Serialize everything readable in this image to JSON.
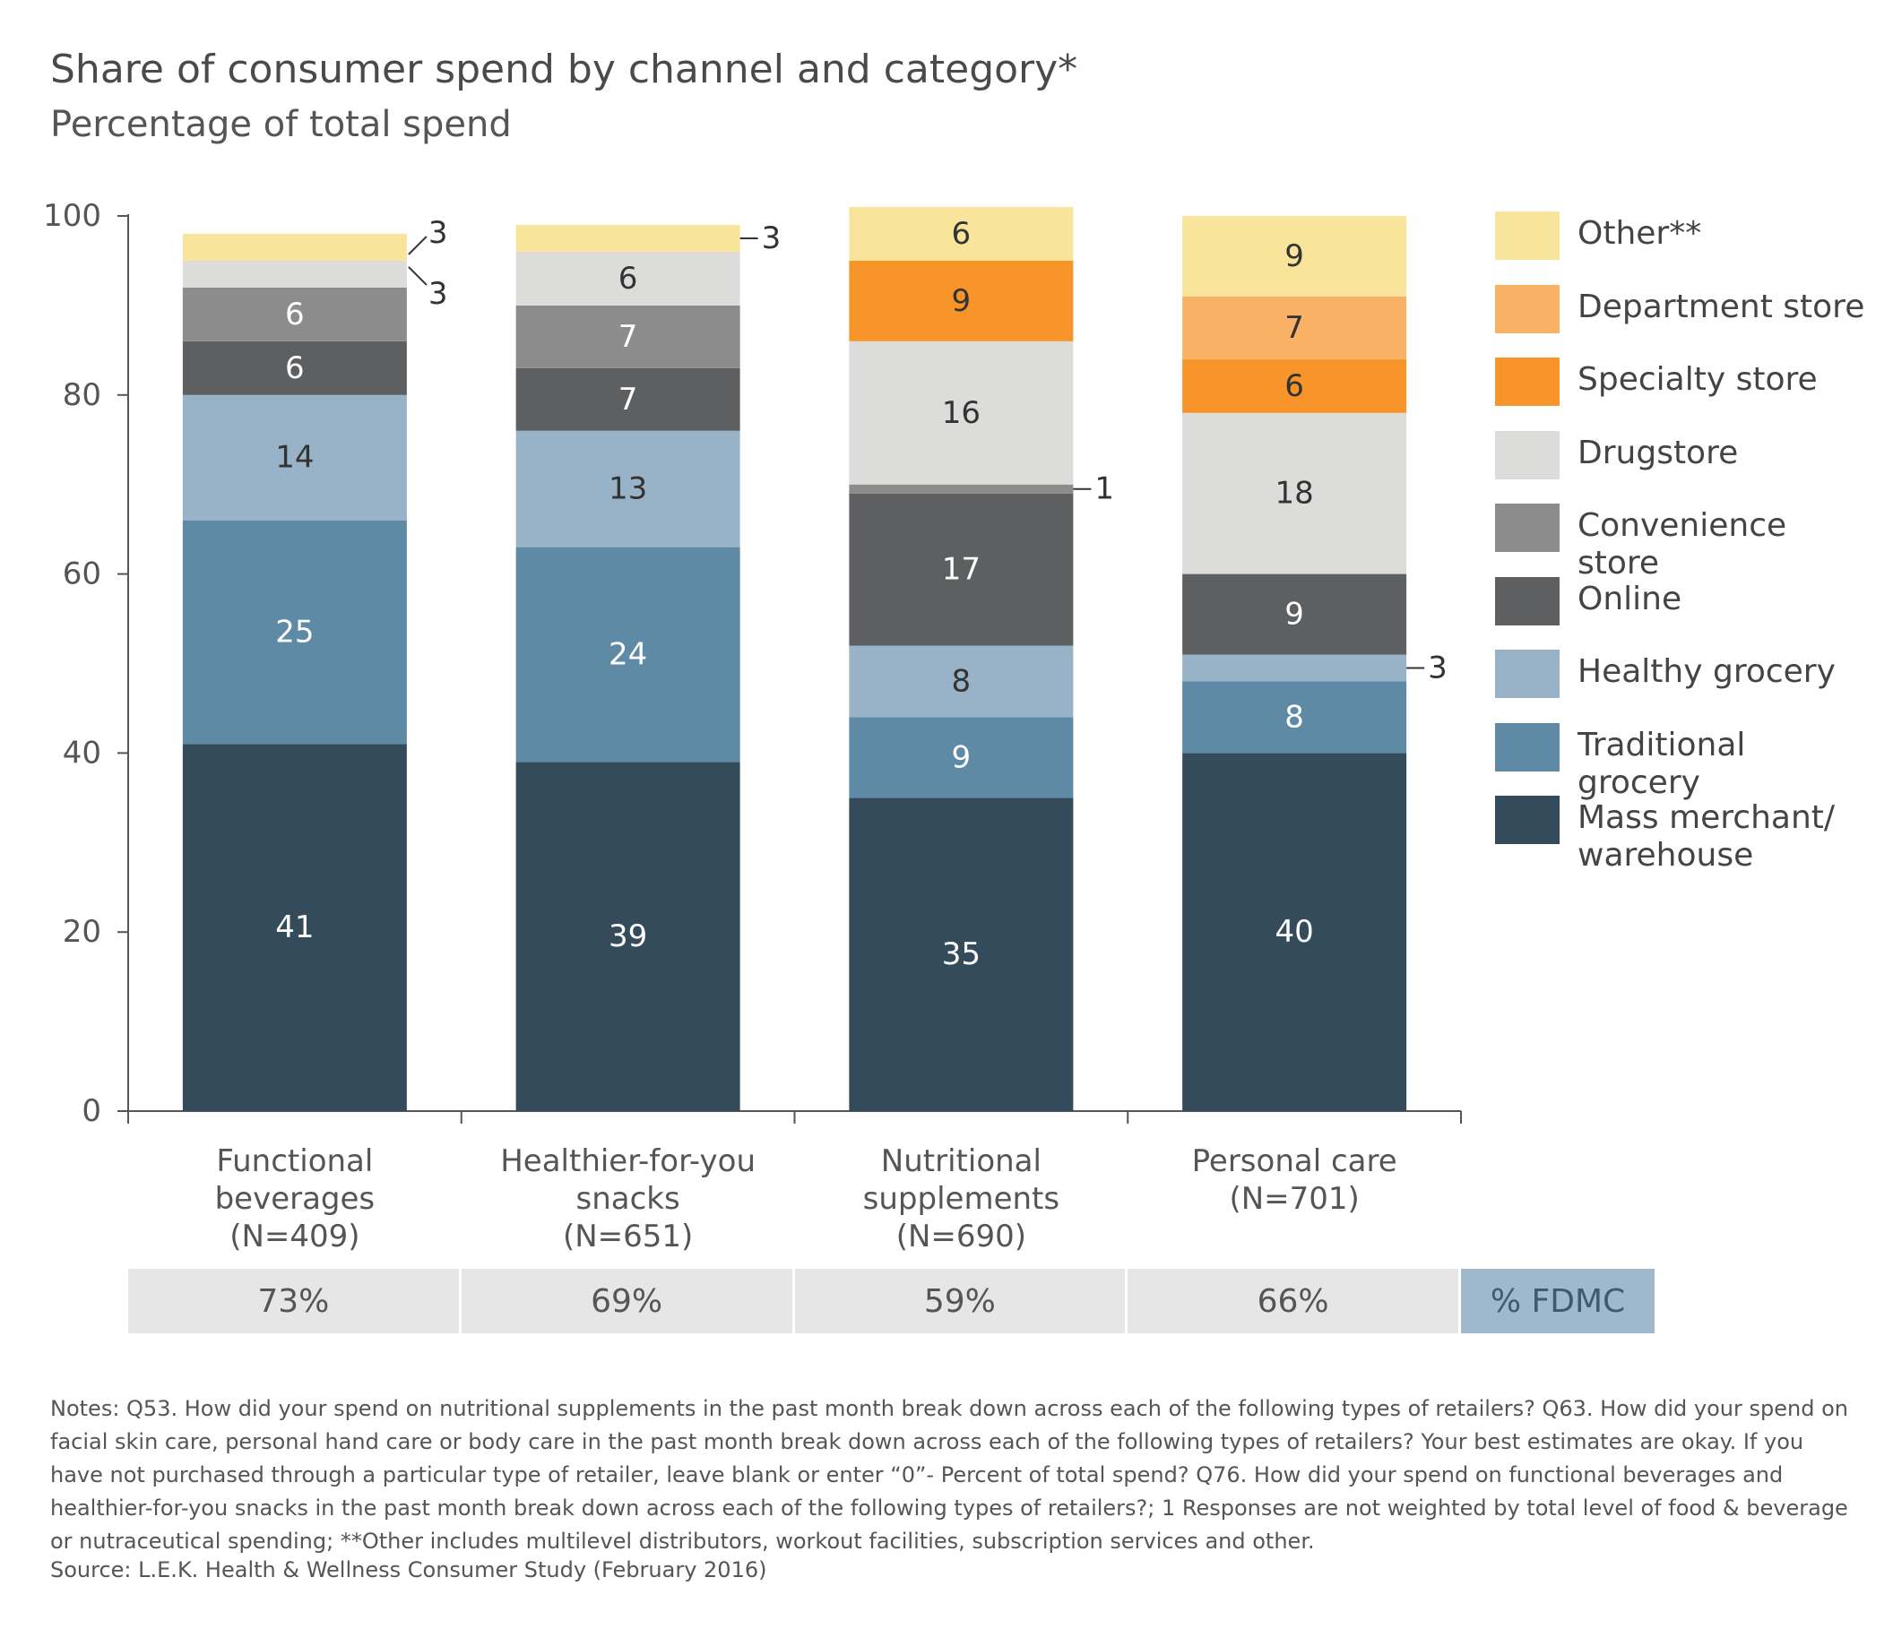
{
  "chart_data": {
    "type": "bar",
    "stacked": true,
    "title": "Share of consumer spend by channel and category*",
    "subtitle": "Percentage of total spend",
    "categories": [
      [
        "Functional",
        "beverages",
        "(N=409)"
      ],
      [
        "Healthier-for-you",
        "snacks",
        "(N=651)"
      ],
      [
        "Nutritional",
        "supplements",
        "(N=690)"
      ],
      [
        "Personal care",
        "(N=701)"
      ]
    ],
    "ylim": [
      0,
      100
    ],
    "yticks": [
      "0",
      "20",
      "40",
      "60",
      "80",
      "100"
    ],
    "legend_position": "right",
    "series": [
      {
        "name": "Mass merchant/ warehouse",
        "legend_lines": [
          "Mass merchant/",
          "warehouse"
        ],
        "color": "#344b5c",
        "values": [
          41,
          39,
          35,
          40
        ],
        "labels": [
          "41",
          "39",
          "35",
          "40"
        ]
      },
      {
        "name": "Traditional grocery",
        "color": "#5f8aa5",
        "values": [
          25,
          24,
          9,
          8
        ],
        "labels": [
          "25",
          "24",
          "9",
          "8"
        ]
      },
      {
        "name": "Healthy grocery",
        "color": "#98b3c7",
        "values": [
          14,
          13,
          8,
          3
        ],
        "labels": [
          "14",
          "13",
          "8",
          "3"
        ]
      },
      {
        "name": "Online",
        "color": "#5d5f60",
        "values": [
          6,
          7,
          17,
          9
        ],
        "labels": [
          "6",
          "7",
          "17",
          "9"
        ]
      },
      {
        "name": "Convenience store",
        "color": "#8c8c8c",
        "values": [
          6,
          7,
          1,
          0
        ],
        "labels": [
          "6",
          "7",
          "1",
          ""
        ]
      },
      {
        "name": "Drugstore",
        "color": "#dcdcdb",
        "values": [
          3,
          6,
          16,
          18
        ],
        "labels": [
          "3",
          "6",
          "16",
          "18"
        ]
      },
      {
        "name": "Specialty store",
        "color": "#f7942a",
        "values": [
          0,
          0,
          9,
          6
        ],
        "labels": [
          "",
          "",
          "9",
          "6"
        ]
      },
      {
        "name": "Department store",
        "color": "#f9b265",
        "values": [
          0,
          0,
          0,
          7
        ],
        "labels": [
          "",
          "",
          "",
          "7"
        ]
      },
      {
        "name": "Other**",
        "color": "#f8e49a",
        "values": [
          3,
          3,
          6,
          9
        ],
        "labels": [
          "3",
          "3",
          "6",
          "9"
        ]
      }
    ],
    "fdmc": {
      "values": [
        "73%",
        "69%",
        "59%",
        "66%"
      ],
      "label": "% FDMC"
    }
  },
  "notes": "Notes: Q53. How did your spend on nutritional supplements in the past month break down across each of the following types of retailers? Q63. How did your spend on facial skin care, personal hand care or body care in the past month break down across each of the following types of retailers? Your best estimates are okay. If you have not purchased through a particular type of retailer, leave blank or enter “0”- Percent of total spend? Q76. How did your spend on functional beverages and healthier-for-you snacks in the past month break down across each of the following types of retailers?; 1 Responses are not weighted by total level of food & beverage or nutraceutical spending; **Other includes multilevel distributors, workout facilities, subscription services and other.",
  "source": "Source: L.E.K. Health & Wellness Consumer Study (February 2016)"
}
